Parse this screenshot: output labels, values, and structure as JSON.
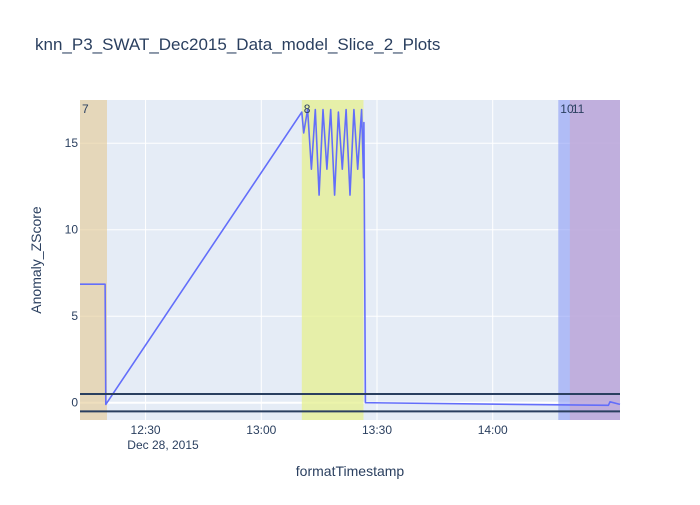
{
  "chart_data": {
    "type": "line",
    "title": "knn_P3_SWAT_Dec2015_Data_model_Slice_2_Plots",
    "xlabel": "formatTimestamp",
    "ylabel": "Anomaly_ZScore",
    "xlim": [
      "2015-12-28 12:13",
      "2015-12-28 14:33"
    ],
    "ylim": [
      -1.0,
      17.5
    ],
    "grid": true,
    "x_ticks": [
      {
        "x": "2015-12-28 12:30",
        "label": "12:30"
      },
      {
        "x": "2015-12-28 13:00",
        "label": "13:00"
      },
      {
        "x": "2015-12-28 13:30",
        "label": "13:30"
      },
      {
        "x": "2015-12-28 14:00",
        "label": "14:00"
      }
    ],
    "x_date_label": "Dec 28, 2015",
    "y_ticks": [
      0,
      5,
      10,
      15
    ],
    "colors": {
      "plot_bg": "#e5ecf6",
      "line": "#636efa",
      "threshold": "#2a3f5f"
    },
    "series": [
      {
        "x": [
          "2015-12-28 12:13",
          "2015-12-28 12:19.5",
          "2015-12-28 12:19.7",
          "2015-12-28 13:10.5",
          "2015-12-28 13:11",
          "2015-12-28 13:12",
          "2015-12-28 13:13",
          "2015-12-28 13:14",
          "2015-12-28 13:15",
          "2015-12-28 13:16",
          "2015-12-28 13:17",
          "2015-12-28 13:18",
          "2015-12-28 13:19",
          "2015-12-28 13:20",
          "2015-12-28 13:21",
          "2015-12-28 13:22",
          "2015-12-28 13:23",
          "2015-12-28 13:24",
          "2015-12-28 13:25",
          "2015-12-28 13:26",
          "2015-12-28 13:26.5",
          "2015-12-28 13:26.6",
          "2015-12-28 13:27",
          "2015-12-28 14:07",
          "2015-12-28 14:30",
          "2015-12-28 14:30.4",
          "2015-12-28 14:33"
        ],
        "values": [
          6.85,
          6.85,
          -0.1,
          16.8,
          15.6,
          16.95,
          13.5,
          16.95,
          12.0,
          16.95,
          13.5,
          16.95,
          12.0,
          16.8,
          13.5,
          16.95,
          12.0,
          16.95,
          13.5,
          16.95,
          13.0,
          16.2,
          0.0,
          -0.1,
          -0.15,
          0.05,
          -0.1
        ]
      }
    ],
    "threshold_lines": [
      0.5,
      -0.5
    ],
    "anomaly_regions": [
      {
        "label": "7",
        "x0": "2015-12-28 12:13",
        "x1": "2015-12-28 12:20",
        "color": "#e5c992",
        "opacity": 0.6
      },
      {
        "label": "8",
        "x0": "2015-12-28 13:10.5",
        "x1": "2015-12-28 13:26.5",
        "color": "#e5f08f",
        "opacity": 0.75
      },
      {
        "label": "10",
        "x0": "2015-12-28 14:17",
        "x1": "2015-12-28 14:33",
        "color": "#8c9cf6",
        "opacity": 0.6
      },
      {
        "label": "11",
        "x0": "2015-12-28 14:20",
        "x1": "2015-12-28 14:33",
        "color": "#c8a9d3",
        "opacity": 0.7
      }
    ]
  }
}
